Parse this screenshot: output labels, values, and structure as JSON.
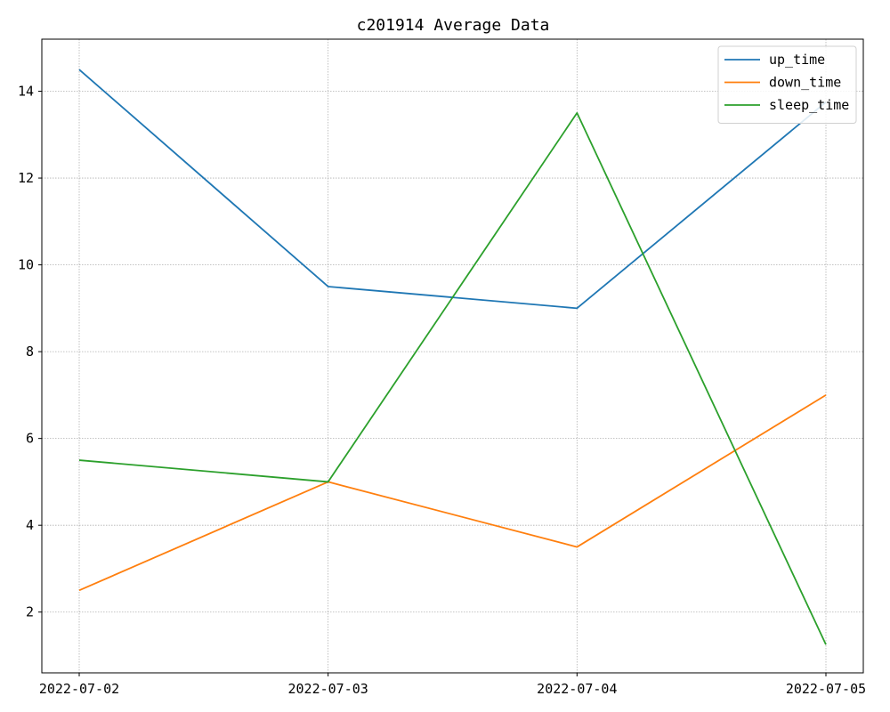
{
  "chart_data": {
    "type": "line",
    "title": "c201914 Average Data",
    "xlabel": "",
    "ylabel": "",
    "categories": [
      "2022-07-02",
      "2022-07-03",
      "2022-07-04",
      "2022-07-05"
    ],
    "series": [
      {
        "name": "up_time",
        "color": "#1f77b4",
        "values": [
          14.5,
          9.5,
          9.0,
          13.75
        ]
      },
      {
        "name": "down_time",
        "color": "#ff7f0e",
        "values": [
          2.5,
          5.0,
          3.5,
          7.0
        ]
      },
      {
        "name": "sleep_time",
        "color": "#2ca02c",
        "values": [
          5.5,
          5.0,
          13.5,
          1.25
        ]
      }
    ],
    "ylim": [
      0.6,
      15.2
    ],
    "yticks": [
      2,
      4,
      6,
      8,
      10,
      12,
      14
    ],
    "grid": true,
    "legend_position": "top-right"
  }
}
